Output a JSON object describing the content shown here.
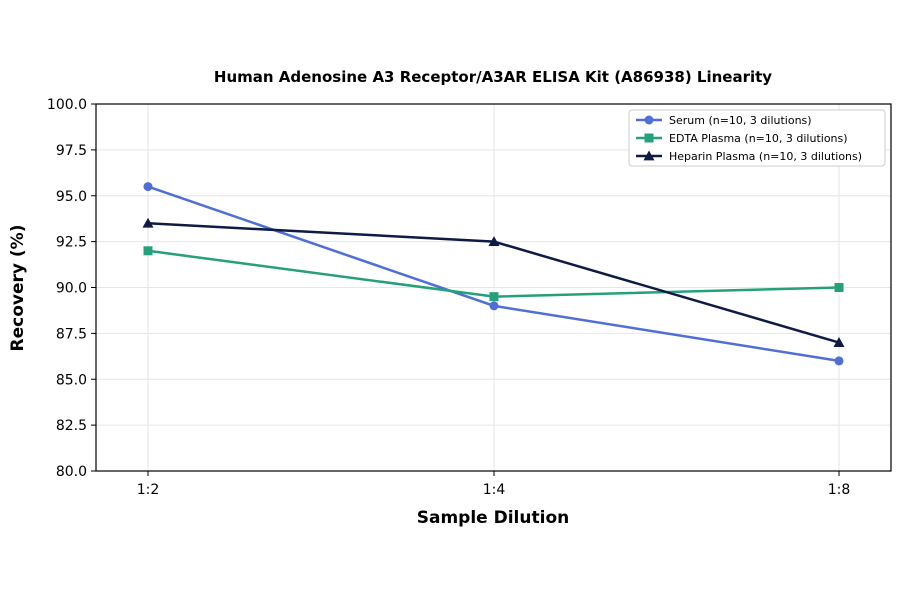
{
  "chart_data": {
    "type": "line",
    "title": "Human Adenosine A3 Receptor/A3AR ELISA Kit (A86938) Linearity",
    "xlabel": "Sample Dilution",
    "ylabel": "Recovery (%)",
    "categories": [
      "1:2",
      "1:4",
      "1:8"
    ],
    "ylim": [
      80.0,
      100.0
    ],
    "yticks": [
      "80.0",
      "82.5",
      "85.0",
      "87.5",
      "90.0",
      "92.5",
      "95.0",
      "97.5",
      "100.0"
    ],
    "grid": true,
    "legend_position": "top-right",
    "series": [
      {
        "name": "Serum (n=10, 3 dilutions)",
        "values": [
          95.5,
          89.0,
          86.0
        ],
        "color": "#4f6fd6",
        "marker": "circle"
      },
      {
        "name": "EDTA Plasma (n=10, 3 dilutions)",
        "values": [
          92.0,
          89.5,
          90.0
        ],
        "color": "#25a07a",
        "marker": "square"
      },
      {
        "name": "Heparin Plasma (n=10, 3 dilutions)",
        "values": [
          93.5,
          92.5,
          87.0
        ],
        "color": "#0f1a45",
        "marker": "triangle"
      }
    ]
  }
}
